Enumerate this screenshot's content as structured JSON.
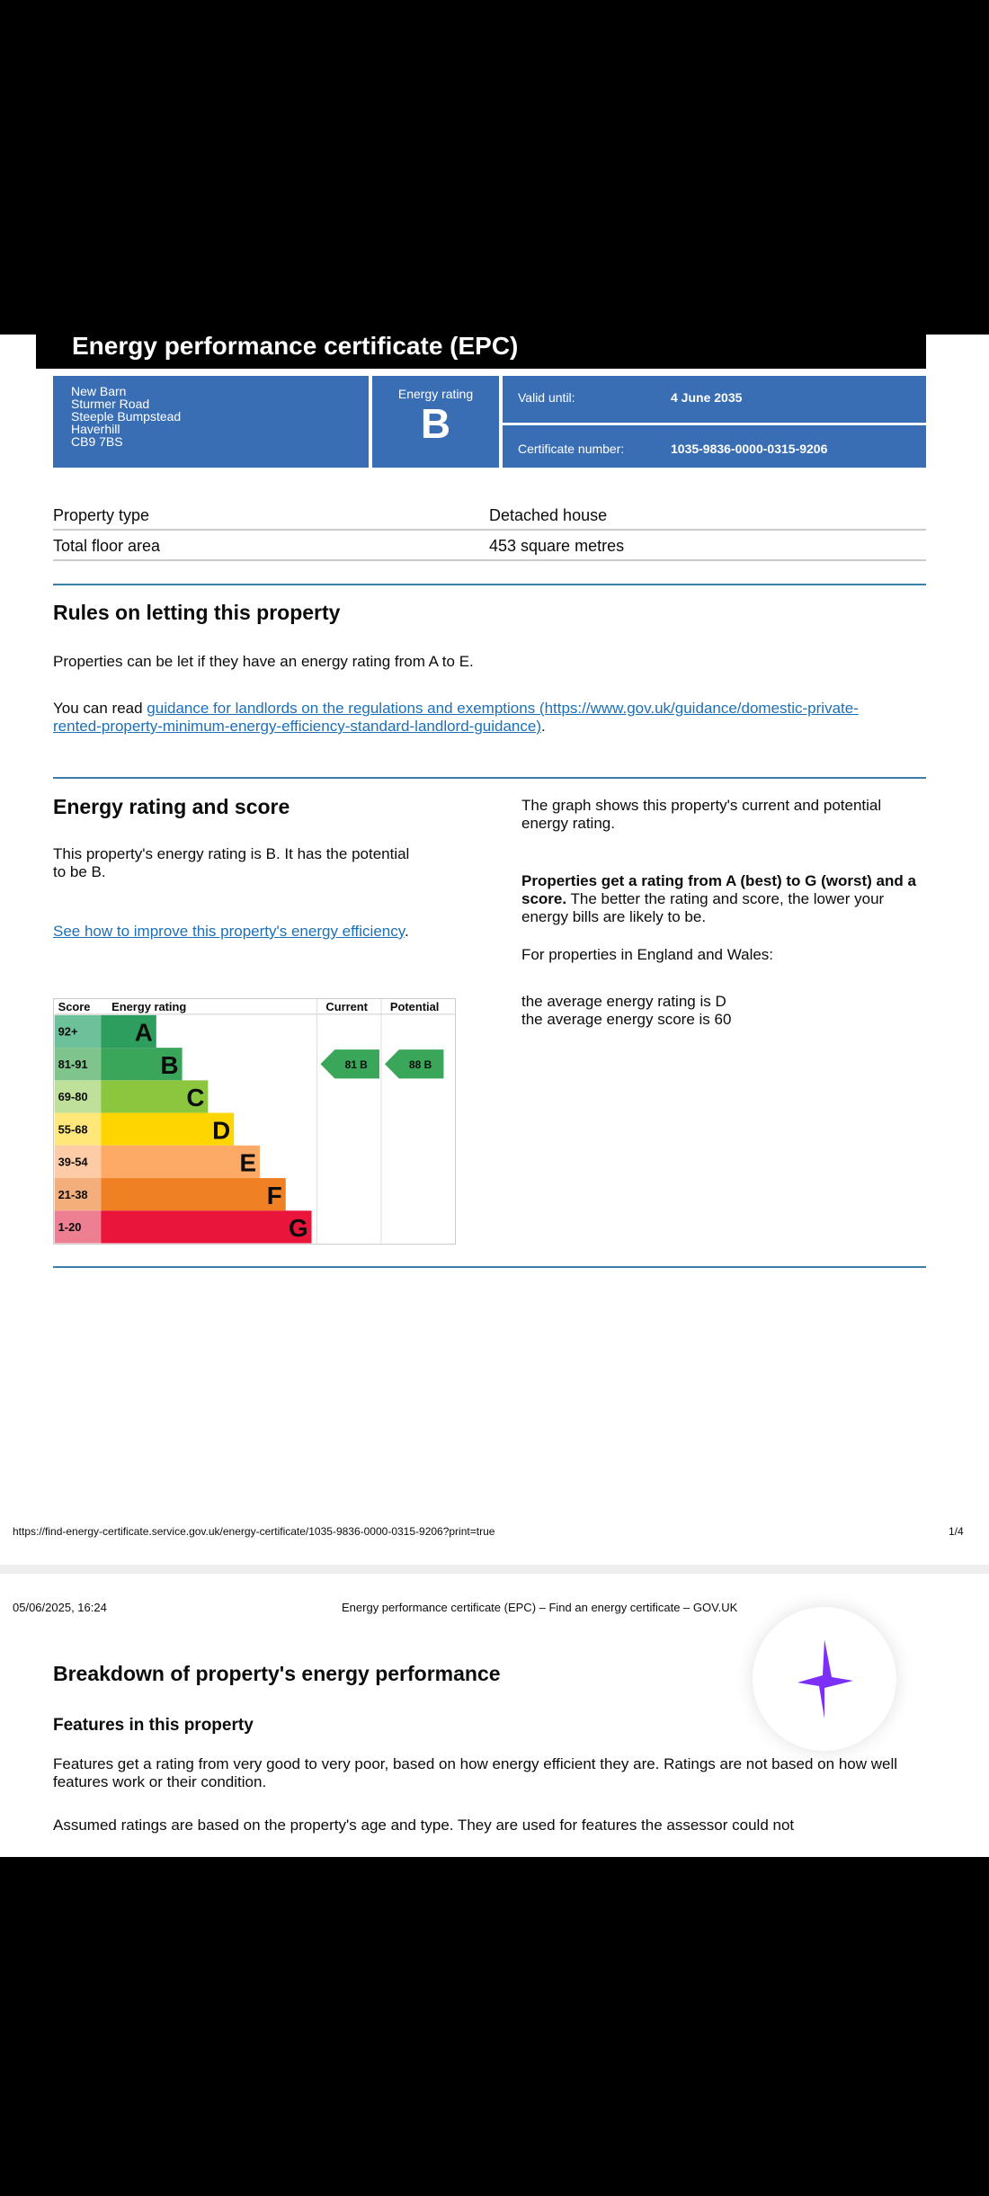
{
  "title": "Energy performance certificate (EPC)",
  "address": [
    "New Barn",
    "Sturmer Road",
    "Steeple Bumpstead",
    "Haverhill",
    "CB9 7BS"
  ],
  "energy_rating_label": "Energy rating",
  "energy_rating": "B",
  "valid_label": "Valid until:",
  "valid_value": "4 June 2035",
  "cert_label": "Certificate number:",
  "cert_value": "1035-9836-0000-0315-9206",
  "property_type_label": "Property type",
  "property_type": "Detached house",
  "floor_area_label": "Total floor area",
  "floor_area": "453 square metres",
  "rules": {
    "heading": "Rules on letting this property",
    "p1": "Properties can be let if they have an energy rating from A to E.",
    "p2_prefix": "You can read ",
    "link": "guidance for landlords on the regulations and exemptions (https://www.gov.uk/guidance/domestic-private-rented-property-minimum-energy-efficiency-standard-landlord-guidance)",
    "p2_suffix": "."
  },
  "score": {
    "heading": "Energy rating and score",
    "p1": "This property's energy rating is B. It has the potential to be B.",
    "link": "See how to improve this property's energy efficiency",
    "link_suffix": ".",
    "right1": "The graph shows this property's current and potential energy rating.",
    "right2_bold": "Properties get a rating from A (best) to G (worst) and a score.",
    "right2": " The better the rating and score, the lower your energy bills are likely to be.",
    "right3": "For properties in England and Wales:",
    "right4": "the average energy rating is D",
    "right5": "the average energy score is 60"
  },
  "chart_data": {
    "type": "table",
    "headers": [
      "Score",
      "Energy rating",
      "Current",
      "Potential"
    ],
    "bands": [
      {
        "score": "92+",
        "letter": "A",
        "color": "#2e9e5e",
        "light": "#6cc19a"
      },
      {
        "score": "81-91",
        "letter": "B",
        "color": "#3aa65a",
        "light": "#7ec48c"
      },
      {
        "score": "69-80",
        "letter": "C",
        "color": "#8cc63f",
        "light": "#bfe09a"
      },
      {
        "score": "55-68",
        "letter": "D",
        "color": "#ffd500",
        "light": "#ffe77a"
      },
      {
        "score": "39-54",
        "letter": "E",
        "color": "#fcaa65",
        "light": "#fdcba6"
      },
      {
        "score": "21-38",
        "letter": "F",
        "color": "#ef8023",
        "light": "#f4ae7b"
      },
      {
        "score": "1-20",
        "letter": "G",
        "color": "#e9153b",
        "light": "#ee7f92"
      }
    ],
    "current": {
      "score": 81,
      "letter": "B",
      "label": "81 B"
    },
    "potential": {
      "score": 88,
      "letter": "B",
      "label": "88 B"
    }
  },
  "footer_url": "https://find-energy-certificate.service.gov.uk/energy-certificate/1035-9836-0000-0315-9206?print=true",
  "page_num": "1/4",
  "p2": {
    "date": "05/06/2025, 16:24",
    "title": "Energy performance certificate (EPC) – Find an energy certificate – GOV.UK",
    "heading": "Breakdown of property's energy performance",
    "sub": "Features in this property",
    "para1": "Features get a rating from very good to very poor, based on how energy efficient they are. Ratings are not based on how well features work or their condition.",
    "para2": "Assumed ratings are based on the property's age and type. They are used for features the assessor could not"
  }
}
